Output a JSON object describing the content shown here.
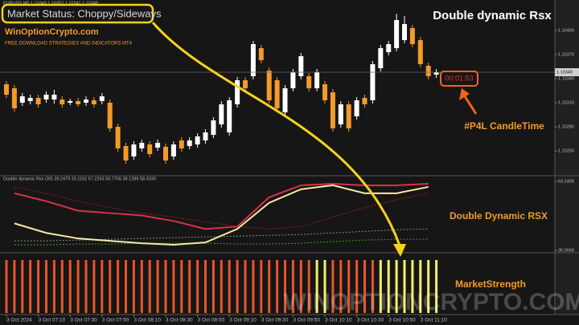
{
  "annotations": {
    "market_status": "Market Status: Choppy/Sideways",
    "site": "WinOptionCrypto.com",
    "tagline": "FREE DOWNLOAD STRATEGIES AND INDICATORS MT4",
    "headline": "Double dynamic Rsx",
    "candle_time": "00:01:53",
    "candle_time_note": "#P4L CandleTime",
    "rsx_note": "Double Dynamic RSX",
    "strength_note": "MarketStrength",
    "watermark": "WINOPTIONCRYPTO.COM"
  },
  "chart_data": [
    {
      "type": "candlestick",
      "title": "EURUSD,M5 1.10349 1.10352 1.10341 1.10348",
      "categories": [
        "3 Oct 2024",
        null,
        null,
        null,
        "3 Oct 07:10",
        null,
        null,
        null,
        "3 Oct 07:30",
        null,
        null,
        null,
        "3 Oct 07:50",
        null,
        null,
        null,
        "3 Oct 08:10",
        null,
        null,
        null,
        "3 Oct 08:30",
        null,
        null,
        null,
        "3 Oct 08:50",
        null,
        null,
        null,
        "3 Oct 09:10",
        null,
        null,
        null,
        "3 Oct 09:30",
        null,
        null,
        null,
        "3 Oct 09:50",
        null,
        null,
        null,
        "3 Oct 10:10",
        null,
        null,
        null,
        "3 Oct 10:30",
        null,
        null,
        null,
        "3 Oct 10:50",
        null,
        null,
        null,
        "3 Oct 11:10",
        null,
        null
      ],
      "open": [
        1.10333,
        1.10328,
        1.1031,
        1.10312,
        1.10316,
        1.10314,
        1.10314,
        1.10314,
        1.1031,
        1.10312,
        1.1031,
        1.10313,
        1.10312,
        1.1031,
        1.1028,
        1.10256,
        1.10243,
        1.10253,
        1.10258,
        1.10254,
        1.10255,
        1.10243,
        1.10263,
        1.10256,
        1.10258,
        1.10263,
        1.1027,
        1.10283,
        1.10273,
        1.10308,
        1.10338,
        1.10343,
        1.10378,
        1.1035,
        1.10338,
        1.10298,
        1.10328,
        1.10343,
        1.10343,
        1.10328,
        1.10333,
        1.10323,
        1.10283,
        1.10308,
        1.10293,
        1.10316,
        1.10313,
        1.10353,
        1.10373,
        1.10378,
        1.10388,
        1.10403,
        1.10388,
        1.10356,
        1.10345
      ],
      "high": [
        1.10337,
        1.10332,
        1.10322,
        1.1032,
        1.1032,
        1.10324,
        1.10326,
        1.10318,
        1.10315,
        1.10316,
        1.10318,
        1.10317,
        1.10322,
        1.10314,
        1.10284,
        1.1026,
        1.10262,
        1.10264,
        1.10262,
        1.10264,
        1.10259,
        1.10262,
        1.10267,
        1.10267,
        1.10272,
        1.10277,
        1.10292,
        1.10312,
        1.10317,
        1.10342,
        1.10342,
        1.10387,
        1.10382,
        1.10354,
        1.10342,
        1.10332,
        1.10352,
        1.10372,
        1.10347,
        1.10352,
        1.10337,
        1.10327,
        1.10312,
        1.10312,
        1.10317,
        1.1032,
        1.10362,
        1.10382,
        1.10387,
        1.10421,
        1.10418,
        1.10407,
        1.10392,
        1.1036,
        1.10352
      ],
      "low": [
        1.10316,
        1.10299,
        1.10306,
        1.10308,
        1.10304,
        1.1031,
        1.10309,
        1.10304,
        1.10307,
        1.10305,
        1.10306,
        1.10304,
        1.10308,
        1.10274,
        1.10249,
        1.10234,
        1.10239,
        1.10249,
        1.10242,
        1.1025,
        1.10234,
        1.10239,
        1.10249,
        1.10252,
        1.10254,
        1.10259,
        1.10266,
        1.10279,
        1.10269,
        1.10304,
        1.10324,
        1.10339,
        1.10359,
        1.10309,
        1.10299,
        1.10294,
        1.10324,
        1.10339,
        1.10324,
        1.10324,
        1.10309,
        1.10274,
        1.10279,
        1.10274,
        1.10289,
        1.10304,
        1.10309,
        1.10349,
        1.10369,
        1.10374,
        1.10384,
        1.10379,
        1.10354,
        1.10339,
        1.10341
      ],
      "close": [
        1.1032,
        1.10303,
        1.10318,
        1.10316,
        1.10308,
        1.1032,
        1.1032,
        1.10308,
        1.10312,
        1.10308,
        1.10314,
        1.10308,
        1.10318,
        1.10278,
        1.10253,
        1.10238,
        1.10258,
        1.1026,
        1.10246,
        1.1026,
        1.10238,
        1.10258,
        1.10253,
        1.10263,
        1.10268,
        1.10273,
        1.10288,
        1.10308,
        1.10313,
        1.10338,
        1.10328,
        1.10383,
        1.10363,
        1.10313,
        1.10303,
        1.10328,
        1.10348,
        1.10368,
        1.10328,
        1.10348,
        1.10313,
        1.10278,
        1.10308,
        1.10278,
        1.10313,
        1.10308,
        1.10358,
        1.10378,
        1.10383,
        1.10413,
        1.10408,
        1.10383,
        1.10358,
        1.10343,
        1.10348
      ],
      "up_color": "#ffffff",
      "down_color": "#f39a2b",
      "ylim": [
        1.1022,
        1.1043
      ],
      "yticks": [
        {
          "value": 1.104,
          "label": "1.10400"
        },
        {
          "value": 1.1037,
          "label": "1.10370"
        },
        {
          "value": 1.1034,
          "label": "1.10340"
        },
        {
          "value": 1.1031,
          "label": "1.10310"
        },
        {
          "value": 1.1028,
          "label": "1.10280"
        },
        {
          "value": 1.1025,
          "label": "1.10250"
        }
      ]
    },
    {
      "type": "line",
      "title": "Double dynamic Rsx (30) 39.2479 33.1102 57.2263 59.7755 39.1289 58.3330",
      "ylim": [
        36.0668,
        63.2406
      ],
      "yticks": [
        36.0668,
        63.2406
      ],
      "series": [
        {
          "color": "#d8314a",
          "dash": false,
          "values": [
            58.56,
            55.43,
            51.68,
            50.74,
            49.81,
            47.62,
            44.5,
            45.44,
            56.99,
            61.68,
            62.3,
            61.68,
            61.68,
            62.3
          ]
        },
        {
          "color": "#9a1f28",
          "dash": true,
          "values": [
            61.05,
            58.56,
            55.43,
            52.93,
            50.74,
            49.18,
            47.31,
            45.44,
            44.5,
            45.44,
            49.18,
            52.93,
            56.06,
            58.56
          ]
        },
        {
          "color": "#8a8a8a",
          "dash": true,
          "values": [
            39.82,
            39.82,
            40.13,
            40.44,
            40.75,
            41.06,
            41.38,
            41.69,
            42.0,
            42.31,
            42.94,
            43.56,
            44.19,
            44.5
          ]
        },
        {
          "color": "#3c9a2a",
          "dash": true,
          "values": [
            38.26,
            38.26,
            38.57,
            38.57,
            38.88,
            38.88,
            38.88,
            38.57,
            38.57,
            38.88,
            39.5,
            40.13,
            40.44,
            40.44
          ]
        },
        {
          "color": "#f7e9a6",
          "dash": false,
          "values": [
            46.69,
            42.94,
            40.75,
            39.82,
            38.88,
            38.26,
            39.19,
            44.5,
            54.81,
            60.12,
            61.68,
            58.56,
            58.56,
            61.05
          ]
        }
      ]
    },
    {
      "type": "bar",
      "ylim": [
        0,
        1
      ],
      "values": [
        1,
        1,
        1,
        1,
        1,
        1,
        1,
        1,
        1,
        1,
        1,
        1,
        1,
        1,
        1,
        1,
        1,
        1,
        1,
        1,
        1,
        1,
        1,
        1,
        1,
        1,
        1,
        1,
        1,
        1,
        1,
        1,
        1,
        1,
        1,
        1,
        1,
        1,
        1,
        1,
        1,
        1,
        1,
        1,
        1,
        1,
        1,
        1,
        1,
        1,
        1,
        1,
        1,
        1,
        1
      ],
      "colors": [
        "#e8552a",
        "#e8552a",
        "#e8552a",
        "#e8552a",
        "#e8552a",
        "#e8552a",
        "#e8552a",
        "#e8552a",
        "#e8552a",
        "#e8552a",
        "#e8552a",
        "#e8552a",
        "#e8552a",
        "#e8552a",
        "#e8552a",
        "#e8552a",
        "#e8552a",
        "#e8552a",
        "#e8552a",
        "#e8552a",
        "#e8552a",
        "#e8552a",
        "#e8552a",
        "#e8552a",
        "#e8552a",
        "#e8552a",
        "#e8552a",
        "#e8552a",
        "#e8552a",
        "#e8552a",
        "#e8552a",
        "#e8552a",
        "#e8552a",
        "#e8552a",
        "#e8552a",
        "#e8552a",
        "#e8552a",
        "#e8552a",
        "#e8552a",
        "#f5f06a",
        "#f5f06a",
        "#e8552a",
        "#e8552a",
        "#e8552a",
        "#e8552a",
        "#e8552a",
        "#e8552a",
        "#f5f06a",
        "#f5f06a",
        "#f5f06a",
        "#f5f06a",
        "#f5f06a",
        "#f5f06a",
        "#f5f06a",
        "#f5f06a"
      ]
    }
  ]
}
